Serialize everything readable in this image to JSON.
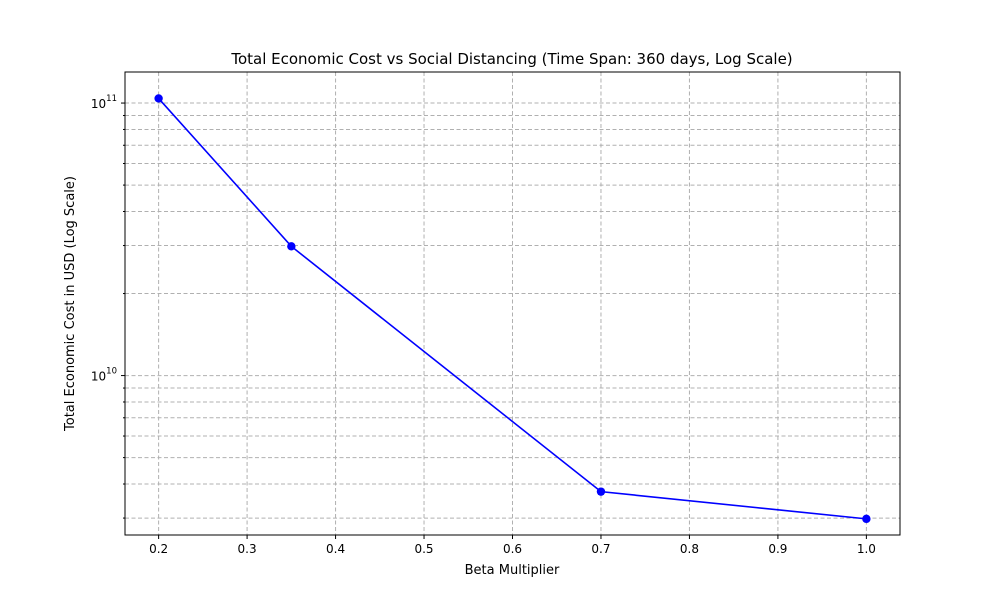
{
  "chart_data": {
    "type": "line",
    "title": "Total Economic Cost vs Social Distancing (Time Span: 360 days, Log Scale)",
    "xlabel": "Beta Multiplier",
    "ylabel": "Total Economic Cost in USD (Log Scale)",
    "xlim": [
      0.162,
      1.038
    ],
    "ylim": [
      2600000000.0,
      130000000000.0
    ],
    "yscale": "log",
    "grid": true,
    "xticks": [
      {
        "value": 0.2,
        "label": "0.2"
      },
      {
        "value": 0.3,
        "label": "0.3"
      },
      {
        "value": 0.4,
        "label": "0.4"
      },
      {
        "value": 0.5,
        "label": "0.5"
      },
      {
        "value": 0.6,
        "label": "0.6"
      },
      {
        "value": 0.7,
        "label": "0.7"
      },
      {
        "value": 0.8,
        "label": "0.8"
      },
      {
        "value": 0.9,
        "label": "0.9"
      },
      {
        "value": 1.0,
        "label": "1.0"
      }
    ],
    "yticks": [
      {
        "value": 10000000000.0,
        "base": "10",
        "exponent": "10"
      },
      {
        "value": 100000000000.0,
        "base": "10",
        "exponent": "11"
      }
    ],
    "series": [
      {
        "color": "#0000ff",
        "marker": "circle",
        "x": [
          0.2,
          0.35,
          0.7,
          1.0
        ],
        "y": [
          104000000000.0,
          29800000000.0,
          3750000000.0,
          2980000000.0
        ]
      }
    ]
  }
}
